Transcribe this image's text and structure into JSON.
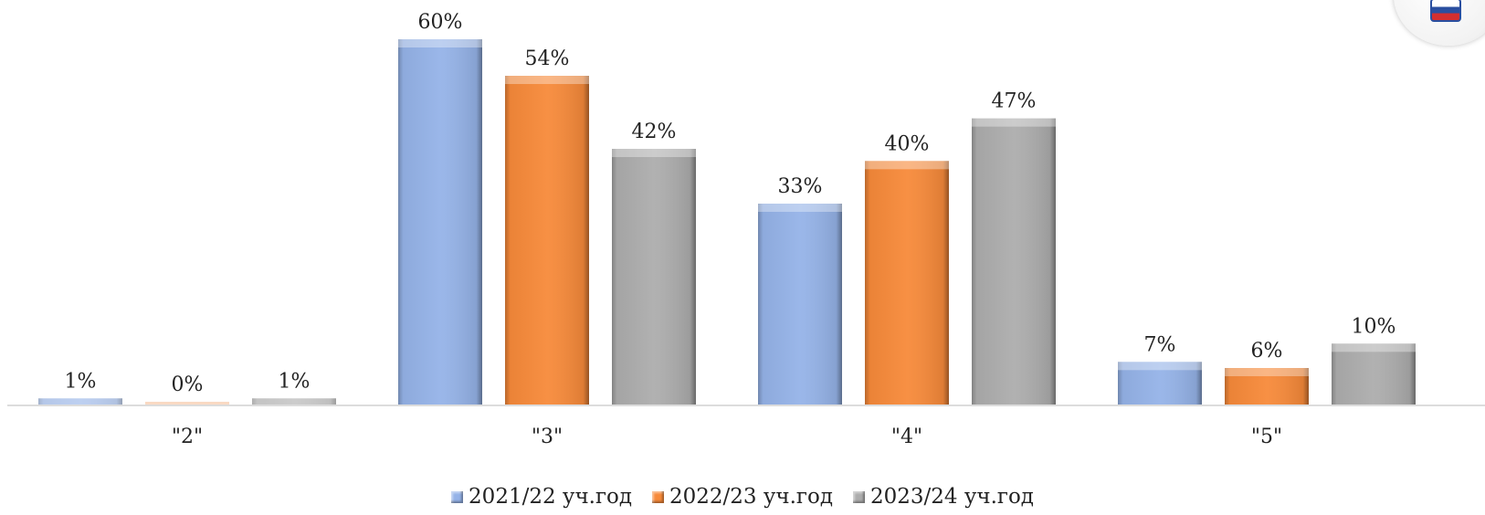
{
  "colors": {
    "series_1": "#95b3e8",
    "series_2": "#f78a3a",
    "series_3": "#adadad",
    "axis": "#d0d0d0",
    "text": "#222222"
  },
  "legend_placement": "bottom-center",
  "chart_data": {
    "type": "bar",
    "title": "",
    "xlabel": "",
    "ylabel": "",
    "ylim": [
      0,
      60
    ],
    "grid": false,
    "categories": [
      "\"2\"",
      "\"3\"",
      "\"4\"",
      "\"5\""
    ],
    "series": [
      {
        "name": "2021/22 уч.год",
        "values": [
          1,
          60,
          33,
          7
        ],
        "labels": [
          "1%",
          "60%",
          "33%",
          "7%"
        ]
      },
      {
        "name": "2022/23 уч.год",
        "values": [
          0,
          54,
          40,
          6
        ],
        "labels": [
          "0%",
          "54%",
          "40%",
          "6%"
        ]
      },
      {
        "name": "2023/24 уч.год",
        "values": [
          1,
          42,
          47,
          10
        ],
        "labels": [
          "1%",
          "42%",
          "47%",
          "10%"
        ]
      }
    ]
  }
}
